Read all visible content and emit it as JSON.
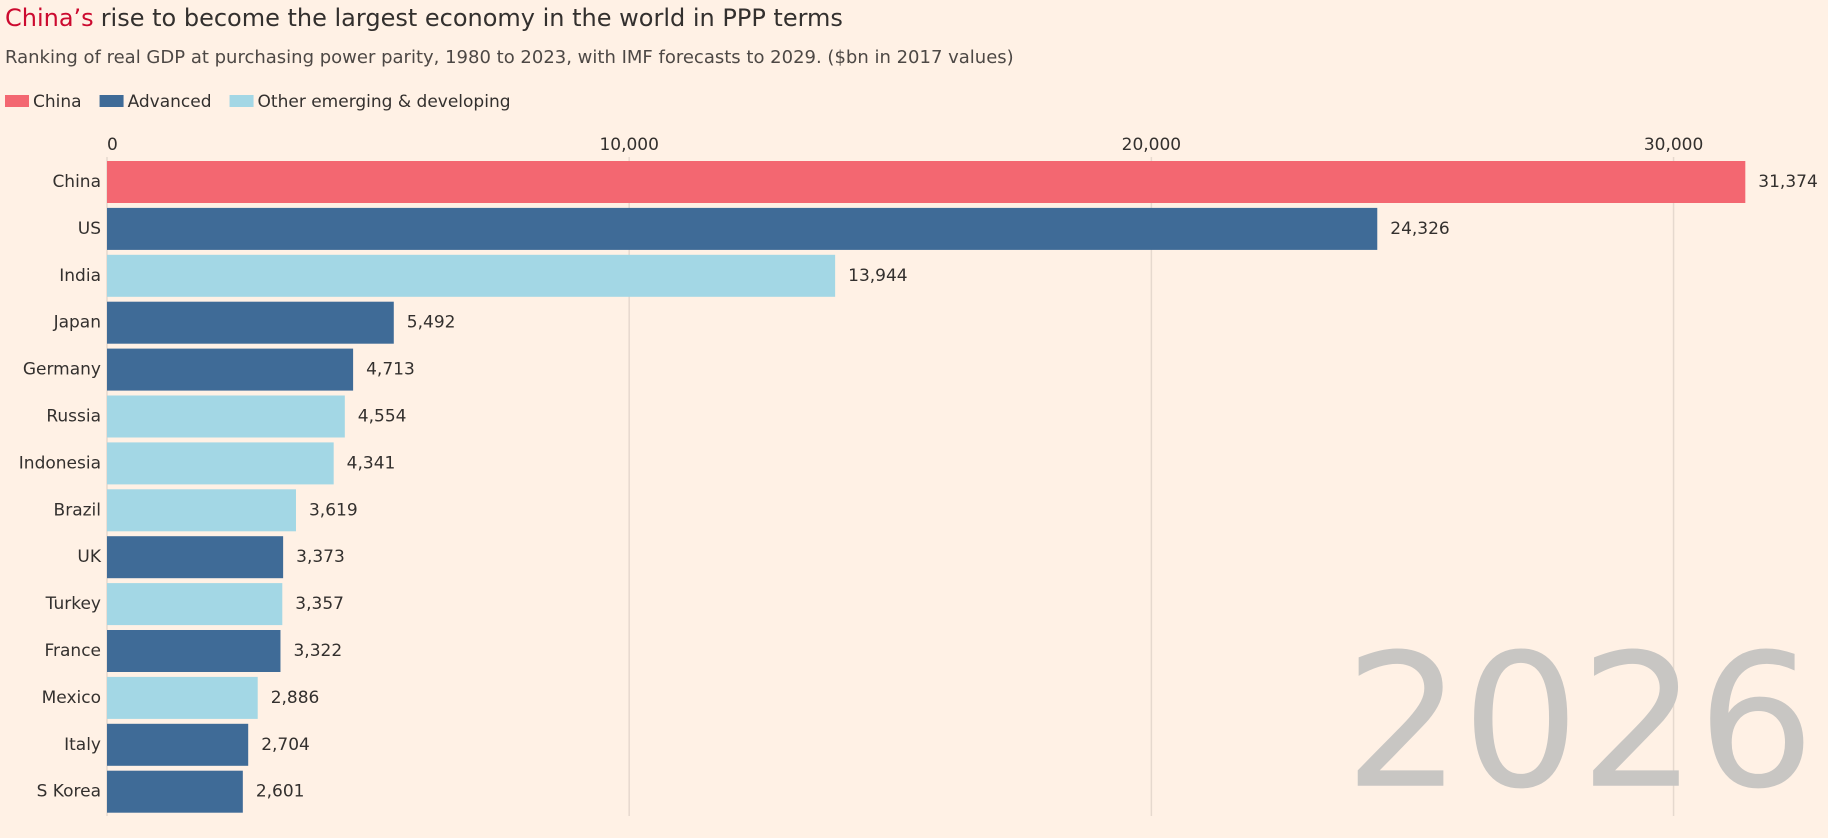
{
  "chart_data": {
    "type": "bar",
    "orientation": "horizontal",
    "title_highlight": "China’s",
    "title": "rise to become the largest economy in the world in PPP terms",
    "subtitle": "Ranking of real GDP at purchasing power parity, 1980 to 2023, with IMF forecasts to 2029. ($bn in 2017 values)",
    "annotation": "2026",
    "categories": [
      "China",
      "US",
      "India",
      "Japan",
      "Germany",
      "Russia",
      "Indonesia",
      "Brazil",
      "UK",
      "Turkey",
      "France",
      "Mexico",
      "Italy",
      "S Korea"
    ],
    "series": [
      {
        "name": "China",
        "color": "#f36771",
        "values": [
          31374,
          null,
          null,
          null,
          null,
          null,
          null,
          null,
          null,
          null,
          null,
          null,
          null,
          null
        ],
        "value_labels": [
          "31,374",
          null,
          null,
          null,
          null,
          null,
          null,
          null,
          null,
          null,
          null,
          null,
          null,
          null
        ]
      },
      {
        "name": "Advanced",
        "color": "#3f6b97",
        "values": [
          null,
          24326,
          null,
          5492,
          4713,
          null,
          null,
          null,
          3373,
          null,
          3322,
          null,
          2704,
          2601
        ],
        "value_labels": [
          null,
          "24,326",
          null,
          "5,492",
          "4,713",
          null,
          null,
          null,
          "3,373",
          null,
          "3,322",
          null,
          "2,704",
          "2,601"
        ]
      },
      {
        "name": "Other emerging & developing",
        "color": "#a3d7e5",
        "values": [
          null,
          null,
          13944,
          null,
          null,
          4554,
          4341,
          3619,
          null,
          3357,
          null,
          2886,
          null,
          null
        ],
        "value_labels": [
          null,
          null,
          "13,944",
          null,
          null,
          "4,554",
          "4,341",
          "3,619",
          null,
          "3,357",
          null,
          "2,886",
          null,
          null
        ]
      }
    ],
    "xlim": [
      0,
      32000
    ],
    "xticks": [
      0,
      {
        "value": 10000,
        "label": "10,000"
      },
      {
        "value": 20000,
        "label": "20,000"
      },
      {
        "value": 30000,
        "label": "30,000"
      }
    ],
    "grid": true,
    "legend": "top-left"
  }
}
